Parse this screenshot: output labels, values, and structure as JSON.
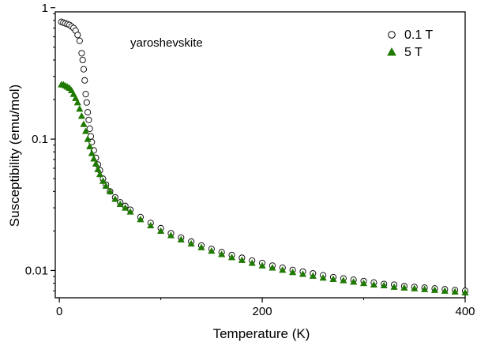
{
  "chart_data": {
    "type": "scatter",
    "title": "",
    "annotation": "yaroshevskite",
    "xlabel": "Temperature (K)",
    "ylabel": "Susceptibility (emu/mol)",
    "xlim": [
      -4,
      400
    ],
    "ylim": [
      0.0062,
      0.93
    ],
    "yscale": "log",
    "grid": false,
    "legend_position": "top-right",
    "xticks": [
      0,
      200,
      400
    ],
    "xtick_labels": [
      "0",
      "200",
      "400"
    ],
    "yticks": [
      0.01,
      0.1,
      1
    ],
    "ytick_labels": [
      "0.01",
      "0.1",
      "1"
    ],
    "series": [
      {
        "name": "0.1 T",
        "marker": "open-circle",
        "color": "#000000",
        "x": [
          2,
          4,
          6,
          8,
          10,
          12,
          14,
          16,
          18,
          20,
          22,
          23,
          24,
          25,
          26,
          27,
          28,
          29,
          30,
          31,
          32,
          34,
          36,
          38,
          40,
          43,
          46,
          50,
          55,
          60,
          65,
          70,
          80,
          90,
          100,
          110,
          120,
          130,
          140,
          150,
          160,
          170,
          180,
          190,
          200,
          210,
          220,
          230,
          240,
          250,
          260,
          270,
          280,
          290,
          300,
          310,
          320,
          330,
          340,
          350,
          360,
          370,
          380,
          390,
          400
        ],
        "y": [
          0.78,
          0.77,
          0.76,
          0.75,
          0.74,
          0.72,
          0.7,
          0.67,
          0.62,
          0.56,
          0.45,
          0.4,
          0.34,
          0.28,
          0.22,
          0.19,
          0.16,
          0.14,
          0.12,
          0.105,
          0.095,
          0.082,
          0.072,
          0.064,
          0.058,
          0.05,
          0.045,
          0.04,
          0.036,
          0.033,
          0.031,
          0.029,
          0.0255,
          0.023,
          0.021,
          0.0192,
          0.0178,
          0.0166,
          0.0155,
          0.0146,
          0.0138,
          0.0131,
          0.0125,
          0.0119,
          0.0114,
          0.0109,
          0.0105,
          0.0101,
          0.0098,
          0.0095,
          0.0092,
          0.0089,
          0.0087,
          0.0085,
          0.0083,
          0.0081,
          0.0079,
          0.0078,
          0.0076,
          0.0075,
          0.0074,
          0.0073,
          0.0072,
          0.0071,
          0.007
        ]
      },
      {
        "name": "5 T",
        "marker": "filled-triangle",
        "color": "#1f7a00",
        "x": [
          2,
          4,
          6,
          8,
          10,
          12,
          14,
          16,
          18,
          20,
          22,
          24,
          26,
          28,
          30,
          32,
          34,
          36,
          38,
          40,
          43,
          46,
          50,
          55,
          60,
          65,
          70,
          80,
          90,
          100,
          110,
          120,
          130,
          140,
          150,
          160,
          170,
          180,
          190,
          200,
          210,
          220,
          230,
          240,
          250,
          260,
          270,
          280,
          290,
          300,
          310,
          320,
          330,
          340,
          350,
          360,
          370,
          380,
          390,
          400
        ],
        "y": [
          0.26,
          0.26,
          0.255,
          0.25,
          0.245,
          0.235,
          0.22,
          0.205,
          0.19,
          0.17,
          0.15,
          0.13,
          0.115,
          0.1,
          0.088,
          0.078,
          0.071,
          0.065,
          0.059,
          0.054,
          0.048,
          0.044,
          0.04,
          0.035,
          0.032,
          0.03,
          0.028,
          0.0245,
          0.022,
          0.02,
          0.0185,
          0.0172,
          0.016,
          0.015,
          0.0141,
          0.0133,
          0.0126,
          0.012,
          0.0114,
          0.0109,
          0.0105,
          0.0101,
          0.0097,
          0.0094,
          0.0091,
          0.0088,
          0.0086,
          0.0084,
          0.0082,
          0.008,
          0.0078,
          0.0077,
          0.0075,
          0.0074,
          0.0073,
          0.0072,
          0.0071,
          0.007,
          0.0069,
          0.0068
        ]
      }
    ]
  }
}
